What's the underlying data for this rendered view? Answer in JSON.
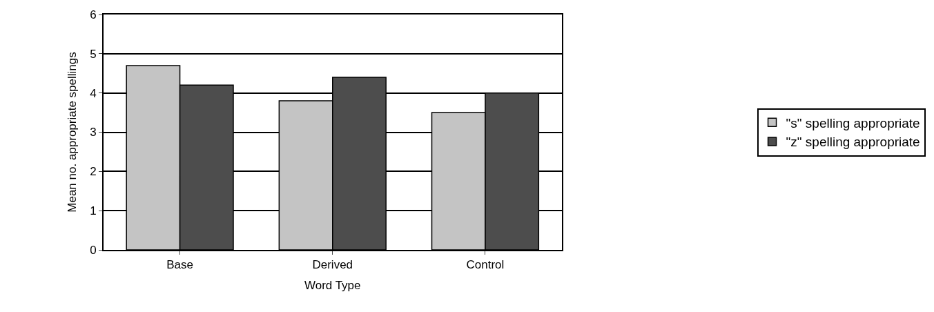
{
  "chart_data": {
    "type": "bar",
    "xlabel": "Word Type",
    "ylabel": "Mean no. appropriate spellings",
    "categories": [
      "Base",
      "Derived",
      "Control"
    ],
    "series": [
      {
        "name": "\"s\" spelling appropriate",
        "color": "#c4c4c4",
        "values": [
          4.7,
          3.8,
          3.5
        ]
      },
      {
        "name": "\"z\" spelling appropriate",
        "color": "#4d4d4d",
        "values": [
          4.2,
          4.4,
          4.0
        ]
      }
    ],
    "ylim": [
      0,
      6
    ],
    "yticks": [
      0,
      1,
      2,
      3,
      4,
      5,
      6
    ],
    "grid": "y",
    "legend": "right"
  }
}
